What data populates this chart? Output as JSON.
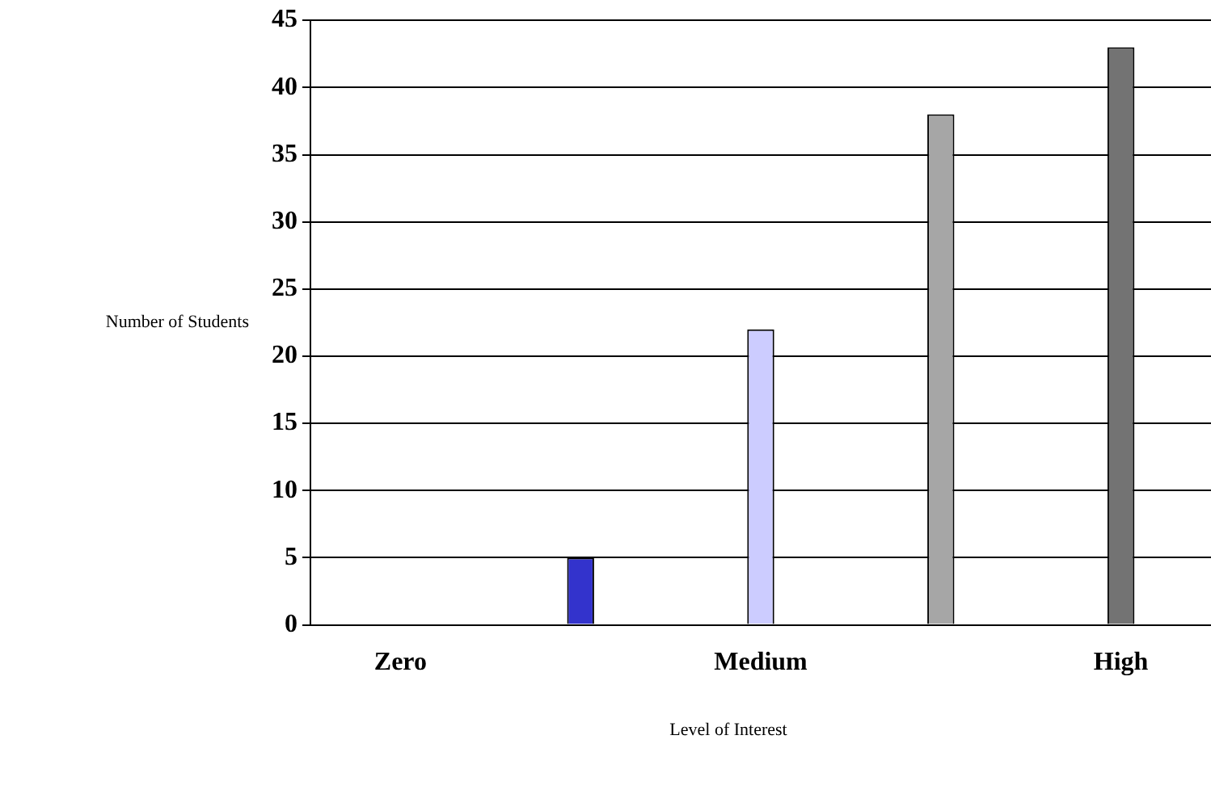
{
  "chart_data": {
    "type": "bar",
    "xlabel": "Level of Interest",
    "ylabel": "Number of Students",
    "categories": [
      "Zero",
      null,
      "Medium",
      null,
      "High"
    ],
    "values": [
      0,
      5,
      22,
      38,
      43
    ],
    "colors": [
      "#339966",
      "#3333cc",
      "#ccccff",
      "#a6a6a6",
      "#737373"
    ],
    "ylim": [
      0,
      45
    ],
    "yticks": [
      0,
      5,
      10,
      15,
      20,
      25,
      30,
      35,
      40,
      45
    ],
    "grid": "y",
    "legend": false
  }
}
